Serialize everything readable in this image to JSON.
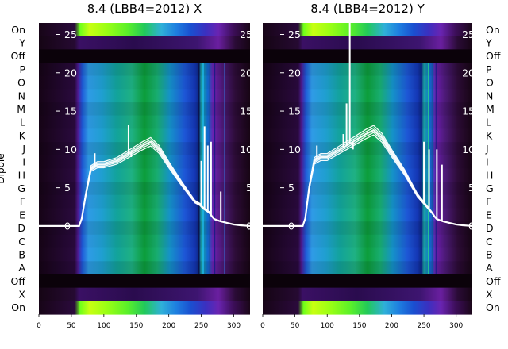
{
  "chart_data": [
    {
      "type": "heatmap",
      "title": "8.4 (LBB4=2012) X",
      "ylabel": "Dipole",
      "x_ticks": [
        0,
        50,
        100,
        150,
        200,
        250,
        300
      ],
      "xlim": [
        0,
        325
      ],
      "row_labels_top_to_bottom": [
        "On",
        "Y",
        "Off",
        "P",
        "O",
        "N",
        "M",
        "L",
        "K",
        "J",
        "I",
        "H",
        "G",
        "F",
        "E",
        "D",
        "C",
        "B",
        "A",
        "Off",
        "X",
        "On"
      ],
      "overlay_line": {
        "y_ticks": [
          0,
          5,
          10,
          15,
          20,
          25
        ],
        "ylim": [
          -11.5,
          26.5
        ],
        "color": "#ffffff",
        "x": [
          0,
          62,
          66,
          72,
          80,
          90,
          100,
          120,
          140,
          160,
          172,
          185,
          200,
          220,
          240,
          248,
          252,
          262,
          266,
          270,
          280,
          285,
          290,
          300,
          310,
          325
        ],
        "y": [
          0,
          0,
          1,
          4,
          7.5,
          8,
          8,
          8.5,
          9.5,
          10.5,
          11,
          10,
          8,
          5.5,
          3.2,
          2.8,
          2.4,
          1.8,
          1.3,
          0.9,
          0.6,
          0.5,
          0.4,
          0.2,
          0.1,
          0
        ],
        "band_spread": 0.5,
        "spikes": [
          {
            "x": 86,
            "y": 9.5
          },
          {
            "x": 130,
            "y": 9
          },
          {
            "x": 138,
            "y": 13.2
          },
          {
            "x": 142,
            "y": 9
          },
          {
            "x": 250,
            "y": 8.5
          },
          {
            "x": 255,
            "y": 13
          },
          {
            "x": 260,
            "y": 10.5
          },
          {
            "x": 265,
            "y": 11
          },
          {
            "x": 280,
            "y": 4.5
          }
        ]
      }
    },
    {
      "type": "heatmap",
      "title": "8.4 (LBB4=2012) Y",
      "ylabel": "",
      "x_ticks": [
        0,
        50,
        100,
        150,
        200,
        250,
        300
      ],
      "xlim": [
        0,
        325
      ],
      "row_labels_top_to_bottom": [
        "On",
        "Y",
        "Off",
        "P",
        "O",
        "N",
        "M",
        "L",
        "K",
        "J",
        "I",
        "H",
        "G",
        "F",
        "E",
        "D",
        "C",
        "B",
        "A",
        "Off",
        "X",
        "On"
      ],
      "overlay_line": {
        "y_ticks": [
          0,
          5,
          10,
          15,
          20,
          25
        ],
        "ylim": [
          -11.5,
          26.5
        ],
        "color": "#ffffff",
        "x": [
          0,
          62,
          66,
          72,
          80,
          90,
          100,
          120,
          140,
          160,
          172,
          185,
          200,
          220,
          240,
          248,
          252,
          262,
          266,
          270,
          280,
          290,
          300,
          310,
          325
        ],
        "y": [
          0,
          0,
          1,
          5,
          8.5,
          9,
          9,
          10,
          11,
          12,
          12.5,
          11.5,
          9.5,
          7,
          4,
          3.2,
          2.8,
          1.8,
          1.3,
          0.9,
          0.6,
          0.4,
          0.2,
          0.1,
          0
        ],
        "band_spread": 0.5,
        "spikes": [
          {
            "x": 84,
            "y": 10.5
          },
          {
            "x": 125,
            "y": 12
          },
          {
            "x": 130,
            "y": 16
          },
          {
            "x": 135,
            "y": 26.5
          },
          {
            "x": 140,
            "y": 10
          },
          {
            "x": 250,
            "y": 11
          },
          {
            "x": 258,
            "y": 10
          },
          {
            "x": 270,
            "y": 10
          },
          {
            "x": 278,
            "y": 8
          }
        ]
      }
    }
  ]
}
